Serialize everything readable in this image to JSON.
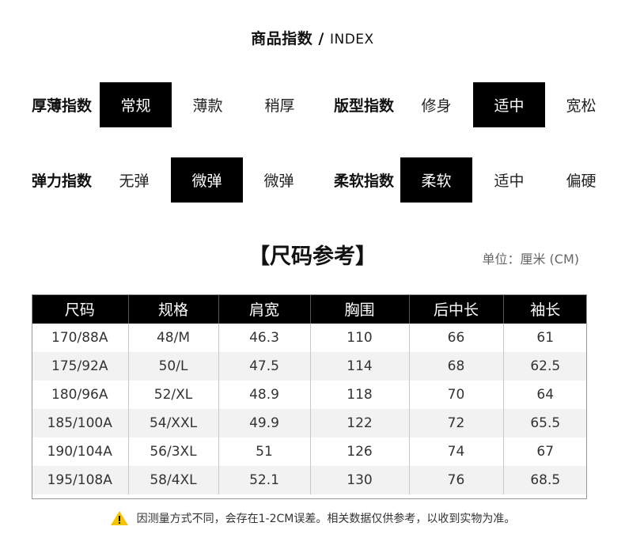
{
  "title": {
    "cn": "商品指数",
    "sep": " / ",
    "en": "INDEX"
  },
  "indices": [
    {
      "label": "厚薄指数",
      "options": [
        "常规",
        "薄款",
        "稍厚"
      ],
      "selected": "常规"
    },
    {
      "label": "版型指数",
      "options": [
        "修身",
        "适中",
        "宽松"
      ],
      "selected": "适中"
    },
    {
      "label": "弹力指数",
      "options": [
        "无弹",
        "微弹",
        "微弹"
      ],
      "selected": "微弹"
    },
    {
      "label": "柔软指数",
      "options": [
        "柔软",
        "适中",
        "偏硬"
      ],
      "selected": "柔软"
    }
  ],
  "size_title": "【尺码参考】",
  "unit": "单位：厘米 (CM)",
  "table": {
    "headers": [
      "尺码",
      "规格",
      "肩宽",
      "胸围",
      "后中长",
      "袖长"
    ],
    "rows": [
      [
        "170/88A",
        "48/M",
        "46.3",
        "110",
        "66",
        "61"
      ],
      [
        "175/92A",
        "50/L",
        "47.5",
        "114",
        "68",
        "62.5"
      ],
      [
        "180/96A",
        "52/XL",
        "48.9",
        "118",
        "70",
        "64"
      ],
      [
        "185/100A",
        "54/XXL",
        "49.9",
        "122",
        "72",
        "65.5"
      ],
      [
        "190/104A",
        "56/3XL",
        "51",
        "126",
        "74",
        "67"
      ],
      [
        "195/108A",
        "58/4XL",
        "52.1",
        "130",
        "76",
        "68.5"
      ]
    ]
  },
  "note": "因测量方式不同，会存在1-2CM误差。相关数据仅供参考，以收到实物为准。",
  "colors": {
    "selected_bg": "#000000",
    "warning": "#f5c400"
  }
}
